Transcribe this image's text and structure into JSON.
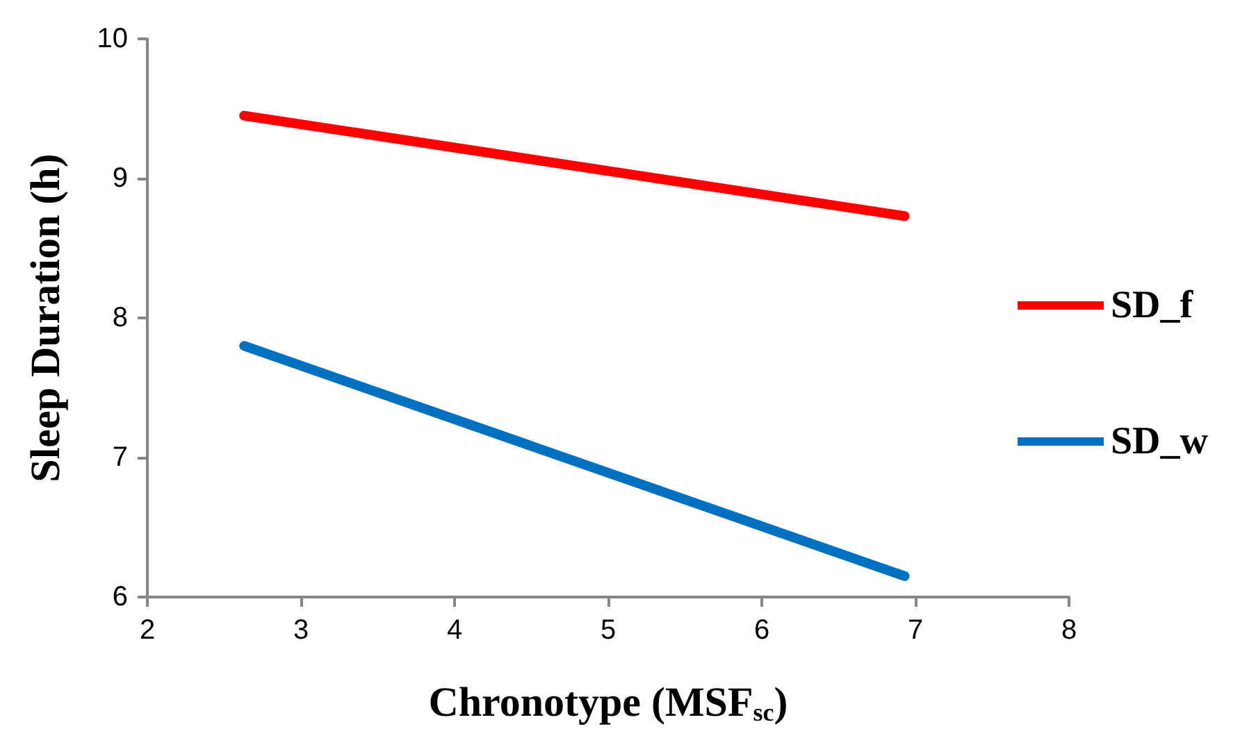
{
  "chart_data": {
    "type": "line",
    "xlabel": "Chronotype (MSF$_{sc}$)",
    "ylabel": "Sleep Duration (h)",
    "x": [
      2.63,
      6.93
    ],
    "xlim": [
      2,
      8
    ],
    "xticks": [
      2,
      3,
      4,
      5,
      6,
      7,
      8
    ],
    "ylim": [
      6,
      10
    ],
    "yticks": [
      6,
      7,
      8,
      9,
      10
    ],
    "grid": false,
    "legend": "right",
    "line_style": "solid",
    "series": [
      {
        "name": "SD_f",
        "color": "#ff0000",
        "values": [
          9.45,
          8.73
        ]
      },
      {
        "name": "SD_w",
        "color": "#0070c0",
        "values": [
          7.8,
          6.15
        ]
      }
    ]
  }
}
